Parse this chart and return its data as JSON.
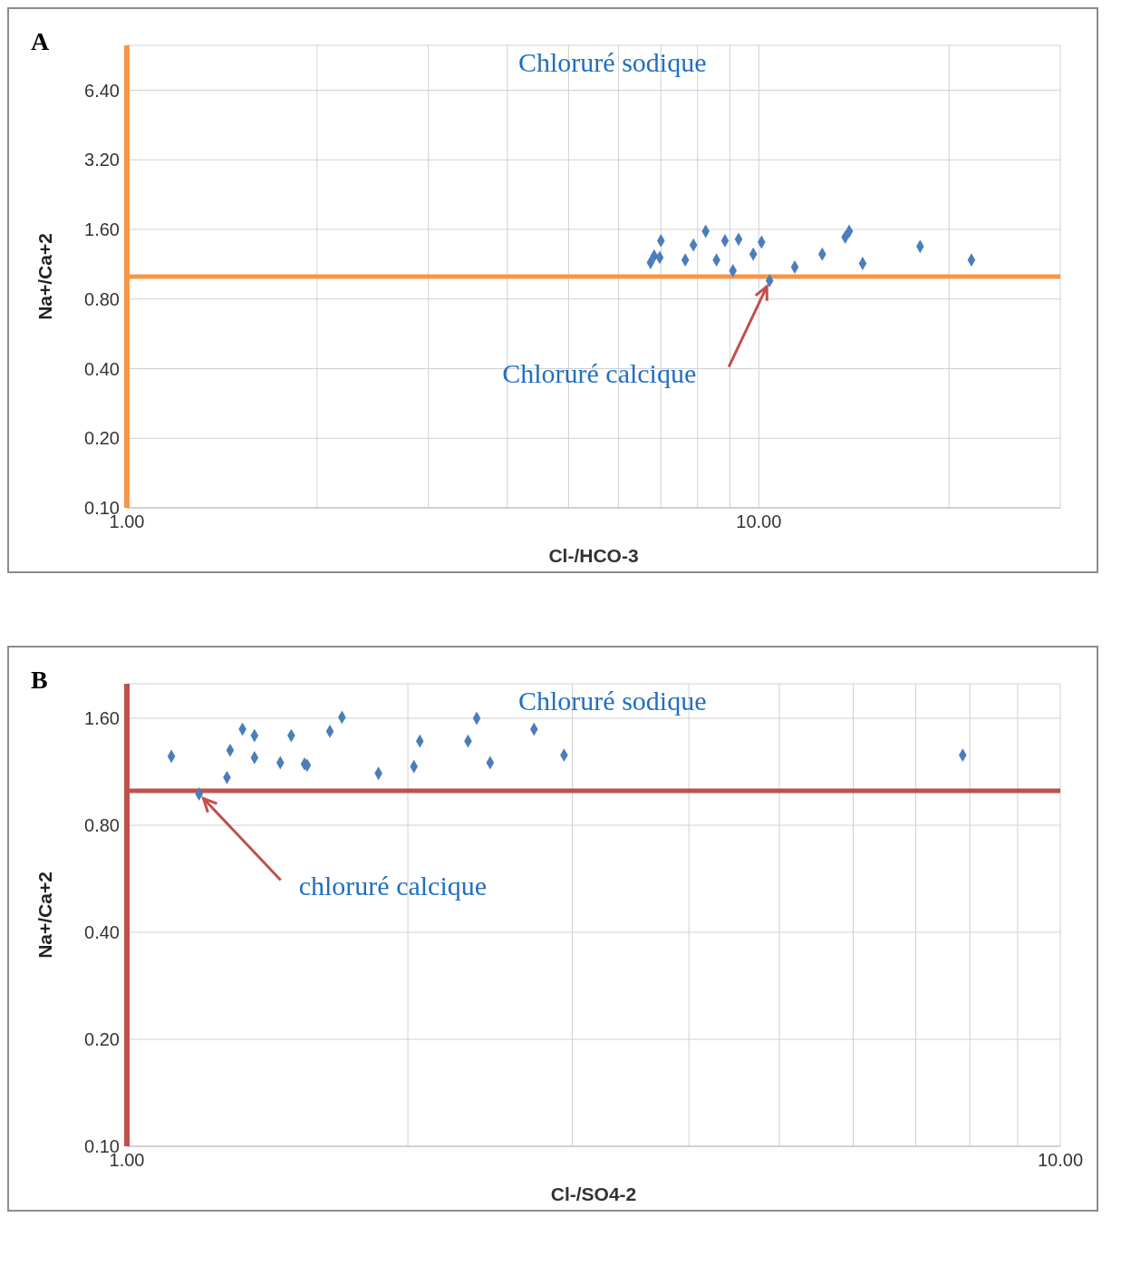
{
  "chart_data": [
    {
      "type": "scatter",
      "title": "A",
      "xlabel": "Cl-/HCO-3",
      "ylabel": "Na+/Ca+2",
      "log": "xy",
      "grid": true,
      "legend": false,
      "marker": "diamond",
      "xlim": [
        1,
        30
      ],
      "xticks": [
        {
          "value": 1,
          "label": "1.00"
        },
        {
          "value": 2,
          "label": null
        },
        {
          "value": 3,
          "label": null
        },
        {
          "value": 4,
          "label": null
        },
        {
          "value": 5,
          "label": null
        },
        {
          "value": 6,
          "label": null
        },
        {
          "value": 7,
          "label": null
        },
        {
          "value": 8,
          "label": null
        },
        {
          "value": 9,
          "label": null
        },
        {
          "value": 10,
          "label": "10.00"
        },
        {
          "value": 20,
          "label": null
        },
        {
          "value": 30,
          "label": null
        }
      ],
      "ylim": [
        0.1,
        10
      ],
      "yticks": [
        {
          "value": 0.1,
          "label": "0.10"
        },
        {
          "value": 0.2,
          "label": "0.20"
        },
        {
          "value": 0.4,
          "label": "0.40"
        },
        {
          "value": 0.8,
          "label": "0.80"
        },
        {
          "value": 1.6,
          "label": "1.60"
        },
        {
          "value": 3.2,
          "label": "3.20"
        },
        {
          "value": 6.4,
          "label": "6.40"
        }
      ],
      "x": [
        6.74,
        6.83,
        6.97,
        7.0,
        7.65,
        7.88,
        8.24,
        8.57,
        8.84,
        9.1,
        9.29,
        9.8,
        10.1,
        10.4,
        11.4,
        12.6,
        13.7,
        13.9,
        14.6,
        18.0,
        21.7
      ],
      "values": [
        1.15,
        1.23,
        1.21,
        1.43,
        1.18,
        1.37,
        1.57,
        1.18,
        1.43,
        1.06,
        1.45,
        1.25,
        1.41,
        0.96,
        1.1,
        1.25,
        1.48,
        1.57,
        1.14,
        1.35,
        1.18
      ],
      "color": "#4a7ebb",
      "ref_lines": [
        {
          "axis": "y",
          "value": 1,
          "color": "#f79646"
        }
      ],
      "annotations": [
        "Chloruré sodique",
        {
          "text": "Chloruré calcique",
          "x": 10.4,
          "y": 0.96
        }
      ]
    },
    {
      "type": "scatter",
      "title": "B",
      "xlabel": "Cl-/SO4-2",
      "ylabel": "Na+/Ca+2",
      "log": "xy",
      "grid": true,
      "legend": false,
      "marker": "diamond",
      "xlim": [
        1,
        10
      ],
      "xticks": [
        {
          "value": 1,
          "label": "1.00"
        },
        {
          "value": 2,
          "label": null
        },
        {
          "value": 3,
          "label": null
        },
        {
          "value": 4,
          "label": null
        },
        {
          "value": 5,
          "label": null
        },
        {
          "value": 6,
          "label": null
        },
        {
          "value": 7,
          "label": null
        },
        {
          "value": 8,
          "label": null
        },
        {
          "value": 9,
          "label": null
        },
        {
          "value": 10,
          "label": "10.00"
        }
      ],
      "ylim": [
        0.1,
        2
      ],
      "yticks": [
        {
          "value": 0.1,
          "label": "0.10"
        },
        {
          "value": 0.2,
          "label": "0.20"
        },
        {
          "value": 0.4,
          "label": "0.40"
        },
        {
          "value": 0.8,
          "label": "0.80"
        },
        {
          "value": 1.6,
          "label": "1.60"
        }
      ],
      "x": [
        1.116,
        1.195,
        1.28,
        1.29,
        1.33,
        1.37,
        1.37,
        1.46,
        1.5,
        1.55,
        1.56,
        1.65,
        1.7,
        1.86,
        2.03,
        2.06,
        2.32,
        2.37,
        2.45,
        2.73,
        2.94,
        7.86
      ],
      "values": [
        1.25,
        0.98,
        1.09,
        1.3,
        1.49,
        1.24,
        1.43,
        1.2,
        1.43,
        1.19,
        1.18,
        1.47,
        1.61,
        1.12,
        1.17,
        1.38,
        1.38,
        1.6,
        1.2,
        1.49,
        1.26,
        1.26
      ],
      "color": "#4a7ebb",
      "ref_lines": [
        {
          "axis": "y",
          "value": 1,
          "color": "#c0504d"
        }
      ],
      "annotations": [
        "Chloruré sodique",
        {
          "text": "chloruré calcique",
          "x": 1.195,
          "y": 0.98
        }
      ]
    }
  ]
}
